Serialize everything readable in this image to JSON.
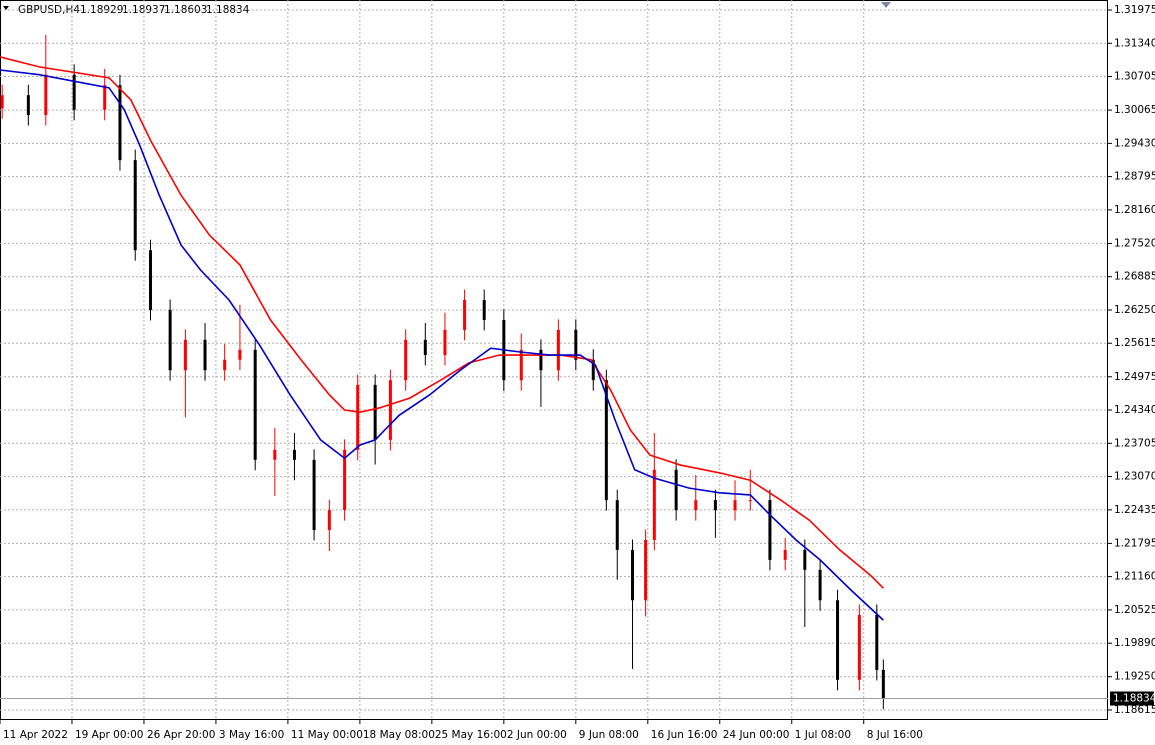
{
  "chart_data": {
    "type": "candlestick",
    "symbol": "GBPUSD,H4",
    "ohlc_info": [
      1.18929,
      1.18937,
      1.18603,
      1.18834
    ],
    "last_price": 1.18834,
    "bull_color": "#ff0000",
    "bear_color": "#000000",
    "grid": true,
    "xlim": [
      0,
      508
    ],
    "ylim": [
      1.18424,
      1.32166
    ],
    "xticks": [
      {
        "value": 0,
        "label": "11 Apr 2022"
      },
      {
        "value": 33,
        "label": "19 Apr 00:00"
      },
      {
        "value": 66,
        "label": "26 Apr 20:00"
      },
      {
        "value": 99,
        "label": "3 May 16:00"
      },
      {
        "value": 132,
        "label": "11 May 00:00"
      },
      {
        "value": 165,
        "label": "18 May 08:00"
      },
      {
        "value": 198,
        "label": "25 May 16:00"
      },
      {
        "value": 231,
        "label": "2 Jun 00:00"
      },
      {
        "value": 264,
        "label": "9 Jun 08:00"
      },
      {
        "value": 297,
        "label": "16 Jun 16:00"
      },
      {
        "value": 330,
        "label": "24 Jun 00:00"
      },
      {
        "value": 363,
        "label": "1 Jul 08:00"
      },
      {
        "value": 396,
        "label": "8 Jul 16:00"
      }
    ],
    "yticks": [
      1.31975,
      {
        "value": 1.3134,
        "label": "1.31340"
      },
      1.30705,
      1.30065,
      {
        "value": 1.2943,
        "label": "1.29430"
      },
      1.28795,
      {
        "value": 1.2816,
        "label": "1.28160"
      },
      {
        "value": 1.2752,
        "label": "1.27520"
      },
      1.26885,
      {
        "value": 1.2625,
        "label": "1.26250"
      },
      1.25615,
      1.24975,
      {
        "value": 1.2434,
        "label": "1.24340"
      },
      1.23705,
      {
        "value": 1.2307,
        "label": "1.23070"
      },
      1.22435,
      1.21795,
      {
        "value": 1.2116,
        "label": "1.21160"
      },
      1.20525,
      {
        "value": 1.1989,
        "label": "1.19890"
      },
      {
        "value": 1.1925,
        "label": "1.19250"
      },
      1.18615
    ],
    "candles": {
      "x": [
        1,
        13,
        21,
        34,
        48,
        55,
        62,
        69,
        78,
        85,
        94,
        103,
        110,
        117,
        126,
        135,
        144,
        151,
        158,
        164,
        172,
        179,
        186,
        195,
        204,
        213,
        222,
        231,
        239,
        248,
        256,
        264,
        272,
        278,
        283,
        290,
        296,
        300,
        310,
        319,
        328,
        337,
        344,
        353,
        360,
        369,
        376,
        384,
        394,
        402,
        405
      ],
      "open": [
        1.301,
        1.3035,
        1.2997,
        1.3074,
        1.3007,
        1.3054,
        1.2911,
        1.2739,
        1.2625,
        1.251,
        1.2568,
        1.251,
        1.253,
        1.2549,
        1.2339,
        1.2358,
        1.2339,
        1.2205,
        1.2243,
        1.2358,
        1.2482,
        1.2377,
        1.2491,
        1.2568,
        1.2539,
        1.2587,
        1.2644,
        1.2606,
        1.2491,
        1.2549,
        1.251,
        1.2587,
        1.253,
        1.2491,
        1.2262,
        1.2167,
        1.2071,
        1.2186,
        1.232,
        1.2243,
        1.2262,
        1.2243,
        1.2262,
        1.2262,
        1.2148,
        1.2167,
        1.2129,
        1.2071,
        1.1919,
        1.2043,
        1.1938
      ],
      "high": [
        1.3055,
        1.3055,
        1.315,
        1.3094,
        1.3085,
        1.3074,
        1.2931,
        1.2759,
        1.2645,
        1.2588,
        1.26,
        1.256,
        1.2635,
        1.2569,
        1.24,
        1.239,
        1.2359,
        1.2263,
        1.2378,
        1.2502,
        1.2502,
        1.2511,
        1.2588,
        1.26,
        1.262,
        1.2664,
        1.2664,
        1.2626,
        1.258,
        1.2569,
        1.2607,
        1.2607,
        1.255,
        1.2511,
        1.2282,
        1.2187,
        1.2206,
        1.239,
        1.234,
        1.231,
        1.2282,
        1.23,
        1.232,
        1.2282,
        1.219,
        1.2187,
        1.2149,
        1.2091,
        1.2063,
        1.2063,
        1.1958
      ],
      "low": [
        1.299,
        1.2977,
        1.2977,
        1.2987,
        1.2987,
        1.2891,
        1.2719,
        1.2605,
        1.249,
        1.242,
        1.249,
        1.249,
        1.251,
        1.2319,
        1.227,
        1.23,
        1.2185,
        1.2165,
        1.2223,
        1.2338,
        1.233,
        1.2357,
        1.2471,
        1.2519,
        1.2519,
        1.2567,
        1.2586,
        1.247,
        1.2471,
        1.244,
        1.249,
        1.251,
        1.2471,
        1.2242,
        1.211,
        1.194,
        1.204,
        1.2166,
        1.2223,
        1.2223,
        1.219,
        1.2223,
        1.2242,
        1.2128,
        1.2128,
        1.202,
        1.2051,
        1.1899,
        1.1899,
        1.1918,
        1.1863
      ],
      "close": [
        1.3035,
        1.2997,
        1.3074,
        1.3007,
        1.3054,
        1.2911,
        1.2739,
        1.2625,
        1.251,
        1.2568,
        1.251,
        1.253,
        1.2549,
        1.2339,
        1.2358,
        1.2339,
        1.2205,
        1.2243,
        1.2358,
        1.2482,
        1.2377,
        1.2491,
        1.2568,
        1.2539,
        1.2587,
        1.2644,
        1.2606,
        1.2491,
        1.2549,
        1.251,
        1.2587,
        1.253,
        1.2491,
        1.2262,
        1.2167,
        1.2071,
        1.2186,
        1.232,
        1.2243,
        1.2262,
        1.2243,
        1.2262,
        1.2262,
        1.2148,
        1.2167,
        1.2129,
        1.2071,
        1.1919,
        1.2043,
        1.1938,
        1.1883
      ]
    },
    "series": [
      {
        "color": "#ff0000",
        "x": [
          0,
          18,
          50,
          60,
          69,
          83,
          96,
          110,
          124,
          138,
          151,
          158,
          165,
          174,
          188,
          202,
          215,
          229,
          243,
          257,
          271,
          280,
          289,
          298,
          312,
          330,
          344,
          358,
          371,
          385,
          399,
          405
        ],
        "values": [
          1.3108,
          1.3089,
          1.3068,
          1.3026,
          1.2949,
          1.2844,
          1.2768,
          1.2711,
          1.2606,
          1.253,
          1.2463,
          1.2434,
          1.243,
          1.2438,
          1.2457,
          1.2491,
          1.2524,
          1.2539,
          1.2539,
          1.2539,
          1.253,
          1.2472,
          1.2396,
          1.2348,
          1.2329,
          1.2314,
          1.23,
          1.2262,
          1.2224,
          1.2167,
          1.2119,
          1.2094
        ]
      },
      {
        "color": "#0000cc",
        "x": [
          0,
          18,
          50,
          57,
          64,
          73,
          83,
          92,
          105,
          119,
          133,
          147,
          158,
          165,
          172,
          183,
          197,
          211,
          225,
          238,
          252,
          266,
          273,
          282,
          291,
          300,
          316,
          330,
          344,
          353,
          365,
          376,
          390,
          405
        ],
        "values": [
          1.3083,
          1.3074,
          1.3049,
          1.3007,
          1.294,
          1.2844,
          1.2749,
          1.2701,
          1.2644,
          1.2558,
          1.2463,
          1.2377,
          1.2342,
          1.2367,
          1.2377,
          1.2424,
          1.2463,
          1.251,
          1.2552,
          1.2545,
          1.2539,
          1.2539,
          1.252,
          1.2415,
          1.232,
          1.2304,
          1.2285,
          1.2276,
          1.2272,
          1.2234,
          1.2186,
          1.2148,
          1.2091,
          1.2033
        ]
      }
    ]
  }
}
